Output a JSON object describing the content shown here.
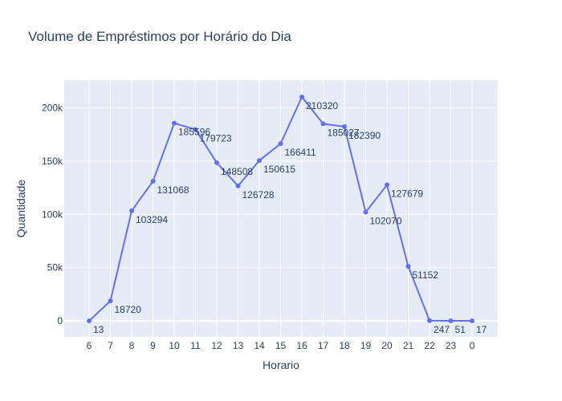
{
  "chart_data": {
    "type": "line",
    "title": "Volume de Empréstimos por Horário do Dia",
    "xlabel": "Horario",
    "ylabel": "Quantidade",
    "categories": [
      "6",
      "7",
      "8",
      "9",
      "10",
      "11",
      "12",
      "13",
      "14",
      "15",
      "16",
      "17",
      "18",
      "19",
      "20",
      "21",
      "22",
      "23",
      "0"
    ],
    "series": [
      {
        "values": [
          13,
          18720,
          103294,
          131068,
          185596,
          179723,
          148508,
          126728,
          150615,
          166411,
          210320,
          185027,
          182390,
          102070,
          127679,
          51152,
          247,
          51,
          17
        ],
        "color": "#636efa"
      }
    ],
    "ylim": [
      -15000,
      226000
    ],
    "yticks": [
      0,
      50000,
      100000,
      150000,
      200000
    ],
    "ytick_labels": [
      "0",
      "50k",
      "100k",
      "150k",
      "200k"
    ],
    "grid": true,
    "plot_background": "#e5ecf6",
    "legend": "none"
  }
}
